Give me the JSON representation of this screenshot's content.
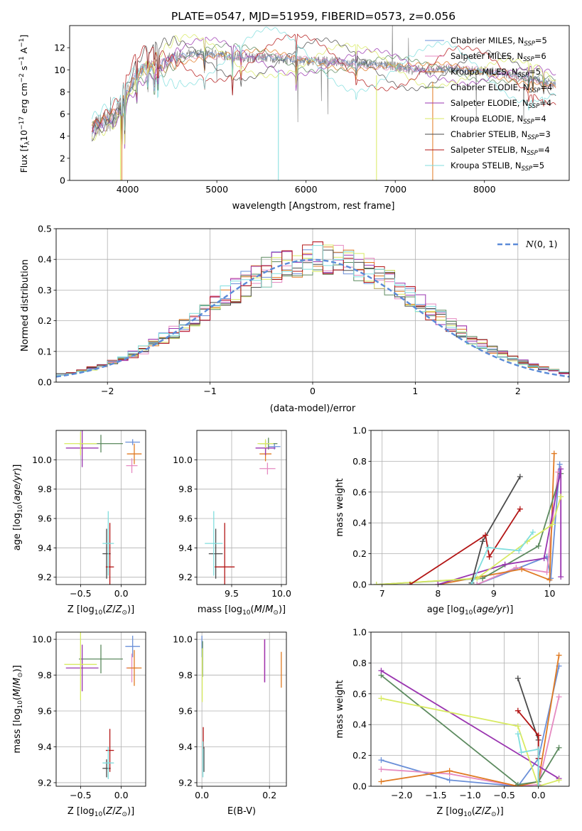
{
  "title": "PLATE=0547, MJD=51959, FIBERID=0573, z=0.056",
  "colors": {
    "Chabrier MILES": "#6a8fd8",
    "Salpeter MILES": "#e58ac1",
    "Kroupa MILES": "#e07a22",
    "Chabrier ELODIE": "#5c8a5f",
    "Salpeter ELODIE": "#9a35b0",
    "Kroupa ELODIE": "#d8ea62",
    "Chabrier STELIB": "#4a4a4a",
    "Salpeter STELIB": "#b31515",
    "Kroupa STELIB": "#80dede",
    "data": "#7f7f7f"
  },
  "chart_data": [
    {
      "id": "spectrum",
      "type": "line",
      "xlabel": "wavelength [Angstrom, rest frame]",
      "ylabel": "Flux [f",
      "xlim": [
        3350,
        8950
      ],
      "ylim": [
        0,
        14
      ],
      "xticks": [
        4000,
        5000,
        6000,
        7000,
        8000
      ],
      "yticks": [
        0,
        2,
        4,
        6,
        8,
        10,
        12
      ],
      "legend_position": "top-right",
      "legend": [
        "Chabrier MILES, N",
        "Salpeter MILES, N",
        "Kroupa MILES, N",
        "Chabrier ELODIE, N",
        "Salpeter ELODIE, N",
        "Kroupa ELODIE, N",
        "Chabrier STELIB, N",
        "Salpeter STELIB, N",
        "Kroupa STELIB, N"
      ],
      "legend_nssp": [
        "=5",
        "=6",
        "=5",
        "=4",
        "=4",
        "=4",
        "=3",
        "=4",
        "=5"
      ],
      "continuum": {
        "x": [
          3600,
          3700,
          3800,
          3900,
          4000,
          4100,
          4200,
          4300,
          4400,
          4500,
          4600,
          4800,
          5000,
          5200,
          5400,
          5600,
          5800,
          6000,
          6200,
          6400,
          6600,
          6800,
          7000,
          7200,
          7400,
          7600,
          7800,
          8000,
          8200,
          8400,
          8600,
          8800
        ],
        "y": [
          4.6,
          5.1,
          5.5,
          6.2,
          8.0,
          9.4,
          10.1,
          10.3,
          10.6,
          11.0,
          11.3,
          11.5,
          11.4,
          11.2,
          11.1,
          11.1,
          10.9,
          10.8,
          10.8,
          10.7,
          10.6,
          10.5,
          10.3,
          10.0,
          9.9,
          10.1,
          9.9,
          9.9,
          9.7,
          9.4,
          9.2,
          8.6
        ]
      }
    },
    {
      "id": "residuals",
      "type": "line",
      "xlabel": "(data-model)/error",
      "ylabel": "Normed distribution",
      "xlim": [
        -2.5,
        2.5
      ],
      "ylim": [
        0,
        0.5
      ],
      "xticks": [
        -2,
        -1,
        0,
        1,
        2
      ],
      "yticks": [
        0.0,
        0.1,
        0.2,
        0.3,
        0.4,
        0.5
      ],
      "grid": true,
      "legend_position": "top-right",
      "gaussian_label": "N(0,1)",
      "bin_width": 0.1
    },
    {
      "id": "age-vs-Z",
      "type": "scatter",
      "xlabel": "Z [log10(Z/Z_sun)]",
      "ylabel": "age  [log10(age/yr)]",
      "xlim": [
        -0.8,
        0.3
      ],
      "ylim": [
        9.15,
        10.2
      ],
      "xticks": [
        -0.5,
        0.0
      ],
      "yticks": [
        9.2,
        9.4,
        9.6,
        9.8,
        10.0
      ],
      "grid": true,
      "points": [
        {
          "model": "Chabrier MILES",
          "x": 0.14,
          "y": 10.12,
          "xerr": 0.09,
          "yerr": 0.02
        },
        {
          "model": "Salpeter MILES",
          "x": 0.13,
          "y": 9.96,
          "xerr": 0.07,
          "yerr": 0.05
        },
        {
          "model": "Kroupa MILES",
          "x": 0.16,
          "y": 10.04,
          "xerr": 0.09,
          "yerr": 0.07
        },
        {
          "model": "Chabrier ELODIE",
          "x": -0.25,
          "y": 10.11,
          "xerr": 0.27,
          "yerr": 0.06
        },
        {
          "model": "Salpeter ELODIE",
          "x": -0.48,
          "y": 10.08,
          "xerr": 0.2,
          "yerr": 0.13
        },
        {
          "model": "Kroupa ELODIE",
          "x": -0.5,
          "y": 10.11,
          "xerr": 0.2,
          "yerr": 0.08
        },
        {
          "model": "Chabrier STELIB",
          "x": -0.18,
          "y": 9.36,
          "xerr": 0.05,
          "yerr": 0.17
        },
        {
          "model": "Salpeter STELIB",
          "x": -0.14,
          "y": 9.27,
          "xerr": 0.05,
          "yerr": 0.3
        },
        {
          "model": "Kroupa STELIB",
          "x": -0.16,
          "y": 9.43,
          "xerr": 0.07,
          "yerr": 0.22
        }
      ]
    },
    {
      "id": "age-vs-mass",
      "type": "scatter",
      "xlabel": "mass [log10(M/M_sun)]",
      "xlim": [
        9.15,
        10.05
      ],
      "ylim": [
        9.15,
        10.2
      ],
      "xticks": [
        9.5,
        10.0
      ],
      "yticks": [
        9.2,
        9.4,
        9.6,
        9.8,
        10.0
      ],
      "grid": true,
      "points": [
        {
          "model": "Chabrier MILES",
          "x": 9.93,
          "y": 10.09,
          "xerr": 0.06,
          "yerr": 0.02
        },
        {
          "model": "Salpeter MILES",
          "x": 9.86,
          "y": 9.94,
          "xerr": 0.08,
          "yerr": 0.04
        },
        {
          "model": "Kroupa MILES",
          "x": 9.84,
          "y": 10.04,
          "xerr": 0.06,
          "yerr": 0.05
        },
        {
          "model": "Chabrier ELODIE",
          "x": 9.87,
          "y": 10.11,
          "xerr": 0.09,
          "yerr": 0.04
        },
        {
          "model": "Salpeter ELODIE",
          "x": 9.84,
          "y": 10.08,
          "xerr": 0.1,
          "yerr": 0.05
        },
        {
          "model": "Kroupa ELODIE",
          "x": 9.84,
          "y": 10.11,
          "xerr": 0.08,
          "yerr": 0.03
        },
        {
          "model": "Chabrier STELIB",
          "x": 9.34,
          "y": 9.36,
          "xerr": 0.07,
          "yerr": 0.17
        },
        {
          "model": "Salpeter STELIB",
          "x": 9.43,
          "y": 9.27,
          "xerr": 0.1,
          "yerr": 0.3
        },
        {
          "model": "Kroupa STELIB",
          "x": 9.32,
          "y": 9.43,
          "xerr": 0.09,
          "yerr": 0.22
        }
      ]
    },
    {
      "id": "mass-weight-vs-age",
      "type": "line",
      "xlabel": "age  [log10(age/yr)]",
      "ylabel": "mass weight",
      "xlim": [
        6.8,
        10.35
      ],
      "ylim": [
        0,
        1.0
      ],
      "xticks": [
        7,
        8,
        9,
        10
      ],
      "yticks": [
        0.0,
        0.2,
        0.4,
        0.6,
        0.8,
        1.0
      ],
      "grid": true,
      "series": [
        {
          "model": "Chabrier MILES",
          "x": [
            8.7,
            9.95,
            10.02,
            10.18
          ],
          "y": [
            0.0,
            0.18,
            0.04,
            0.78
          ]
        },
        {
          "model": "Salpeter MILES",
          "x": [
            8.7,
            9.4,
            9.95,
            10.15
          ],
          "y": [
            0.0,
            0.11,
            0.08,
            0.73
          ]
        },
        {
          "model": "Kroupa MILES",
          "x": [
            8.0,
            9.5,
            10.0,
            10.08
          ],
          "y": [
            0.0,
            0.1,
            0.03,
            0.85
          ]
        },
        {
          "model": "Chabrier ELODIE",
          "x": [
            6.9,
            8.8,
            9.8,
            10.2
          ],
          "y": [
            0.0,
            0.04,
            0.25,
            0.72
          ]
        },
        {
          "model": "Salpeter ELODIE",
          "x": [
            8.0,
            9.2,
            9.9,
            10.2,
            10.2
          ],
          "y": [
            0.0,
            0.13,
            0.17,
            0.75,
            0.05
          ]
        },
        {
          "model": "Kroupa ELODIE",
          "x": [
            6.9,
            8.7,
            9.6,
            10.05,
            10.2
          ],
          "y": [
            0.0,
            0.04,
            0.28,
            0.39,
            0.57
          ]
        },
        {
          "model": "Chabrier STELIB",
          "x": [
            8.6,
            8.8,
            9.47
          ],
          "y": [
            0.01,
            0.28,
            0.7
          ]
        },
        {
          "model": "Salpeter STELIB",
          "x": [
            7.5,
            8.85,
            8.92,
            9.47
          ],
          "y": [
            0.0,
            0.32,
            0.18,
            0.49
          ]
        },
        {
          "model": "Kroupa STELIB",
          "x": [
            8.6,
            8.9,
            9.45,
            9.7
          ],
          "y": [
            0.0,
            0.24,
            0.22,
            0.34
          ]
        }
      ]
    },
    {
      "id": "mass-vs-Z",
      "type": "scatter",
      "xlabel": "Z [log10(Z/Z_sun)]",
      "ylabel": "mass [log10(M/M_sun)]",
      "xlim": [
        -0.8,
        0.3
      ],
      "ylim": [
        9.18,
        10.04
      ],
      "xticks": [
        -0.5,
        0.0
      ],
      "yticks": [
        9.2,
        9.4,
        9.6,
        9.8,
        10.0
      ],
      "grid": true,
      "points": [
        {
          "model": "Chabrier MILES",
          "x": 0.14,
          "y": 9.96,
          "xerr": 0.09,
          "yerr": 0.06
        },
        {
          "model": "Salpeter MILES",
          "x": 0.13,
          "y": 9.84,
          "xerr": 0.07,
          "yerr": 0.08
        },
        {
          "model": "Kroupa MILES",
          "x": 0.16,
          "y": 9.84,
          "xerr": 0.09,
          "yerr": 0.1
        },
        {
          "model": "Chabrier ELODIE",
          "x": -0.25,
          "y": 9.89,
          "xerr": 0.27,
          "yerr": 0.08
        },
        {
          "model": "Salpeter ELODIE",
          "x": -0.48,
          "y": 9.84,
          "xerr": 0.2,
          "yerr": 0.13
        },
        {
          "model": "Kroupa ELODIE",
          "x": -0.5,
          "y": 9.86,
          "xerr": 0.2,
          "yerr": 0.2
        },
        {
          "model": "Chabrier STELIB",
          "x": -0.18,
          "y": 9.28,
          "xerr": 0.05,
          "yerr": 0.05
        },
        {
          "model": "Salpeter STELIB",
          "x": -0.14,
          "y": 9.38,
          "xerr": 0.05,
          "yerr": 0.12
        },
        {
          "model": "Kroupa STELIB",
          "x": -0.16,
          "y": 9.31,
          "xerr": 0.07,
          "yerr": 0.09
        }
      ]
    },
    {
      "id": "mass-vs-ebv",
      "type": "scatter",
      "xlabel": "E(B-V)",
      "xlim": [
        -0.015,
        0.25
      ],
      "ylim": [
        9.18,
        10.04
      ],
      "xticks": [
        0.0,
        0.2
      ],
      "yticks": [
        9.2,
        9.4,
        9.6,
        9.8,
        10.0
      ],
      "grid": true,
      "points": [
        {
          "model": "Chabrier MILES",
          "x": 0.0,
          "y": 9.96,
          "xerr": 0.0,
          "yerr": 0.06
        },
        {
          "model": "Salpeter MILES",
          "x": 0.185,
          "y": 9.88,
          "xerr": 0.0,
          "yerr": 0.12
        },
        {
          "model": "Kroupa MILES",
          "x": 0.235,
          "y": 9.83,
          "xerr": 0.0,
          "yerr": 0.1
        },
        {
          "model": "Chabrier ELODIE",
          "x": 0.002,
          "y": 9.89,
          "xerr": 0.0,
          "yerr": 0.1
        },
        {
          "model": "Salpeter ELODIE",
          "x": 0.186,
          "y": 9.88,
          "xerr": 0.0,
          "yerr": 0.12
        },
        {
          "model": "Kroupa ELODIE",
          "x": 0.001,
          "y": 9.8,
          "xerr": 0.0,
          "yerr": 0.15
        },
        {
          "model": "Chabrier STELIB",
          "x": 0.006,
          "y": 9.33,
          "xerr": 0.0,
          "yerr": 0.07
        },
        {
          "model": "Salpeter STELIB",
          "x": 0.004,
          "y": 9.45,
          "xerr": 0.0,
          "yerr": 0.06
        },
        {
          "model": "Kroupa STELIB",
          "x": 0.003,
          "y": 9.33,
          "xerr": 0.0,
          "yerr": 0.1
        }
      ]
    },
    {
      "id": "mass-weight-vs-Z",
      "type": "line",
      "xlabel": "Z [log10(Z/Z_sun)]",
      "ylabel": "mass weight",
      "xlim": [
        -2.45,
        0.45
      ],
      "ylim": [
        0,
        1.0
      ],
      "xticks": [
        -2.0,
        -1.5,
        -1.0,
        -0.5,
        0.0
      ],
      "yticks": [
        0.0,
        0.2,
        0.4,
        0.6,
        0.8,
        1.0
      ],
      "grid": true,
      "series": [
        {
          "model": "Chabrier MILES",
          "x": [
            -2.3,
            -1.3,
            -0.3,
            0.0,
            0.3
          ],
          "y": [
            0.17,
            0.04,
            0.0,
            0.18,
            0.78
          ]
        },
        {
          "model": "Salpeter MILES",
          "x": [
            -2.3,
            -1.3,
            -0.3,
            0.0,
            0.3
          ],
          "y": [
            0.11,
            0.08,
            0.0,
            0.01,
            0.58
          ]
        },
        {
          "model": "Kroupa MILES",
          "x": [
            -2.3,
            -1.3,
            -0.3,
            0.0,
            0.3
          ],
          "y": [
            0.03,
            0.1,
            0.0,
            0.03,
            0.85
          ]
        },
        {
          "model": "Chabrier ELODIE",
          "x": [
            -2.3,
            -0.3,
            0.0,
            0.3
          ],
          "y": [
            0.72,
            0.01,
            0.03,
            0.25
          ]
        },
        {
          "model": "Salpeter ELODIE",
          "x": [
            -2.3,
            0.3
          ],
          "y": [
            0.75,
            0.05
          ]
        },
        {
          "model": "Kroupa ELODIE",
          "x": [
            -2.3,
            -0.3,
            0.0,
            0.3
          ],
          "y": [
            0.57,
            0.39,
            0.0,
            0.04
          ]
        },
        {
          "model": "Chabrier STELIB",
          "x": [
            -0.3,
            0.0,
            0.0
          ],
          "y": [
            0.7,
            0.3,
            0.0
          ]
        },
        {
          "model": "Salpeter STELIB",
          "x": [
            -0.3,
            0.0,
            0.0
          ],
          "y": [
            0.49,
            0.33,
            0.18
          ]
        },
        {
          "model": "Kroupa STELIB",
          "x": [
            -0.3,
            -0.25,
            0.0,
            0.0
          ],
          "y": [
            0.34,
            0.22,
            0.24,
            0.0
          ]
        }
      ]
    }
  ]
}
